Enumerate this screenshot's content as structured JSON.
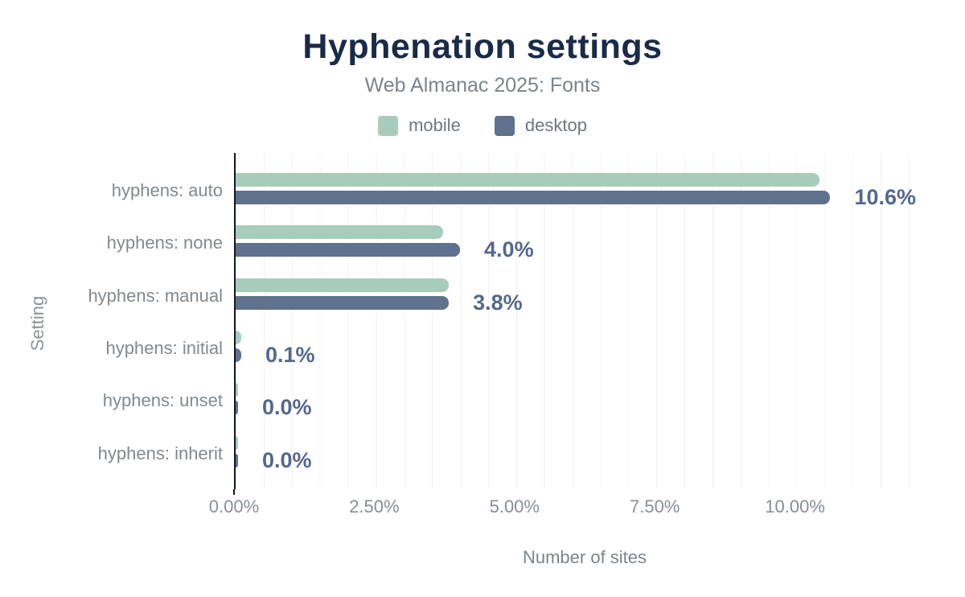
{
  "header": {
    "title": "Hyphenation settings",
    "subtitle": "Web Almanac 2025: Fonts"
  },
  "legend": [
    {
      "label": "mobile",
      "color": "#a8ccbb"
    },
    {
      "label": "desktop",
      "color": "#5f718c"
    }
  ],
  "chart_data": {
    "type": "bar",
    "orientation": "horizontal",
    "title": "Hyphenation settings",
    "subtitle": "Web Almanac 2025: Fonts",
    "xlabel": "Number of sites",
    "ylabel": "Setting",
    "categories": [
      "hyphens: auto",
      "hyphens: none",
      "hyphens: manual",
      "hyphens: initial",
      "hyphens: unset",
      "hyphens: inherit"
    ],
    "series": [
      {
        "name": "mobile",
        "color": "#a8ccbb",
        "values": [
          10.4,
          3.7,
          3.8,
          0.1,
          0.0,
          0.0
        ]
      },
      {
        "name": "desktop",
        "color": "#5f718c",
        "values": [
          10.6,
          4.0,
          3.8,
          0.1,
          0.0,
          0.0
        ]
      }
    ],
    "value_labels": [
      "10.6%",
      "4.0%",
      "3.8%",
      "0.1%",
      "0.0%",
      "0.0%"
    ],
    "x_ticks": [
      "0.00%",
      "2.50%",
      "5.00%",
      "7.50%",
      "10.00%"
    ],
    "x_tick_values": [
      0,
      2.5,
      5,
      7.5,
      10
    ],
    "xlim": [
      0,
      12.5
    ],
    "grid_step_percent": 0.5,
    "grid": true,
    "legend_position": "top"
  },
  "colors": {
    "title": "#1a2b49",
    "subtitle": "#7b848c",
    "value_label": "#54688c",
    "axis_text": "#868e96",
    "gridline": "#f0f1f3",
    "axis_line": "#111827"
  }
}
